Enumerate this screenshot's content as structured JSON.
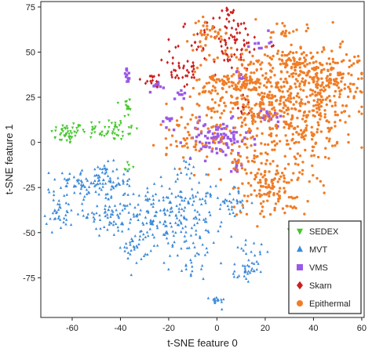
{
  "chart_data": {
    "type": "scatter",
    "xlabel": "t-SNE feature 0",
    "ylabel": "t-SNE feature 1",
    "xlim": [
      -73,
      61
    ],
    "ylim": [
      -97,
      78
    ],
    "x_ticks": [
      -60,
      -40,
      -20,
      0,
      20,
      40,
      60
    ],
    "y_ticks": [
      75,
      50,
      25,
      0,
      -25,
      -50,
      -75
    ],
    "grid": false,
    "legend_position": "bottom-right",
    "series": [
      {
        "name": "SEDEX",
        "color": "#44c62b",
        "marker": "triangle-down",
        "clusters": [
          {
            "cx": -62,
            "cy": 5,
            "sx": 3.5,
            "sy": 3,
            "n": 45
          },
          {
            "cx": -44,
            "cy": 7,
            "sx": 6,
            "sy": 3,
            "n": 50
          },
          {
            "cx": -37,
            "cy": 20,
            "sx": 1,
            "sy": 4,
            "n": 15
          },
          {
            "cx": -37,
            "cy": -14,
            "sx": 1,
            "sy": 2,
            "n": 6
          },
          {
            "cx": 34,
            "cy": -48,
            "sx": 3,
            "sy": 1.5,
            "n": 12
          }
        ]
      },
      {
        "name": "MVT",
        "color": "#3d8ad8",
        "marker": "triangle-up",
        "clusters": [
          {
            "cx": -50,
            "cy": -22,
            "sx": 8,
            "sy": 5,
            "n": 120
          },
          {
            "cx": -45,
            "cy": -40,
            "sx": 5,
            "sy": 5,
            "n": 60
          },
          {
            "cx": -65,
            "cy": -38,
            "sx": 3,
            "sy": 6,
            "n": 35
          },
          {
            "cx": -22,
            "cy": -42,
            "sx": 10,
            "sy": 9,
            "n": 180
          },
          {
            "cx": -8,
            "cy": -38,
            "sx": 5,
            "sy": 10,
            "n": 50
          },
          {
            "cx": 7,
            "cy": -33,
            "sx": 2.5,
            "sy": 4,
            "n": 30
          },
          {
            "cx": -34,
            "cy": -58,
            "sx": 3,
            "sy": 4,
            "n": 25
          },
          {
            "cx": -10,
            "cy": -66,
            "sx": 4,
            "sy": 5,
            "n": 25
          },
          {
            "cx": 12,
            "cy": -72,
            "sx": 2.5,
            "sy": 3,
            "n": 30
          },
          {
            "cx": 0,
            "cy": -88,
            "sx": 1.5,
            "sy": 1.5,
            "n": 15
          },
          {
            "cx": 14,
            "cy": -60,
            "sx": 5,
            "sy": 4,
            "n": 15
          },
          {
            "cx": -14,
            "cy": -15,
            "sx": 4,
            "sy": 3,
            "n": 12
          }
        ]
      },
      {
        "name": "VMS",
        "color": "#9b59e6",
        "marker": "square",
        "clusters": [
          {
            "cx": -37,
            "cy": 37,
            "sx": 0.8,
            "sy": 2,
            "n": 12
          },
          {
            "cx": -25,
            "cy": 32,
            "sx": 1.5,
            "sy": 2,
            "n": 10
          },
          {
            "cx": -15,
            "cy": 27,
            "sx": 1.2,
            "sy": 1.5,
            "n": 8
          },
          {
            "cx": -20,
            "cy": 13,
            "sx": 1,
            "sy": 3,
            "n": 8
          },
          {
            "cx": 0,
            "cy": 2,
            "sx": 7,
            "sy": 5,
            "n": 90
          },
          {
            "cx": 10,
            "cy": 37,
            "sx": 1,
            "sy": 2,
            "n": 10
          },
          {
            "cx": 8,
            "cy": -14,
            "sx": 1,
            "sy": 2,
            "n": 10
          },
          {
            "cx": 22,
            "cy": 15,
            "sx": 2.5,
            "sy": 3,
            "n": 20
          },
          {
            "cx": 18,
            "cy": 55,
            "sx": 2,
            "sy": 2,
            "n": 10
          }
        ]
      },
      {
        "name": "Skarn",
        "color": "#cc1f1f",
        "marker": "diamond",
        "clusters": [
          {
            "cx": 5,
            "cy": 55,
            "sx": 8,
            "sy": 8,
            "n": 90
          },
          {
            "cx": -15,
            "cy": 40,
            "sx": 4,
            "sy": 5,
            "n": 35
          },
          {
            "cx": -28,
            "cy": 34,
            "sx": 3,
            "sy": 2,
            "n": 12
          },
          {
            "cx": 5,
            "cy": 72,
            "sx": 2,
            "sy": 1.2,
            "n": 10
          },
          {
            "cx": 12,
            "cy": 20,
            "sx": 2,
            "sy": 3,
            "n": 10
          }
        ]
      },
      {
        "name": "Epithermal",
        "color": "#f07d27",
        "marker": "circle",
        "clusters": [
          {
            "cx": 35,
            "cy": 20,
            "sx": 12,
            "sy": 18,
            "n": 380
          },
          {
            "cx": 47,
            "cy": 36,
            "sx": 7,
            "sy": 7,
            "n": 120
          },
          {
            "cx": 15,
            "cy": 25,
            "sx": 12,
            "sy": 15,
            "n": 250
          },
          {
            "cx": 32,
            "cy": 45,
            "sx": 5,
            "sy": 3,
            "n": 45
          },
          {
            "cx": 8,
            "cy": 32,
            "sx": 8,
            "sy": 5,
            "n": 90
          },
          {
            "cx": -10,
            "cy": 5,
            "sx": 7,
            "sy": 8,
            "n": 60
          },
          {
            "cx": 22,
            "cy": -28,
            "sx": 8,
            "sy": 7,
            "n": 100
          },
          {
            "cx": -4,
            "cy": 60,
            "sx": 4,
            "sy": 4,
            "n": 35
          },
          {
            "cx": 15,
            "cy": -12,
            "sx": 5,
            "sy": 5,
            "n": 40
          },
          {
            "cx": 28,
            "cy": 62,
            "sx": 2,
            "sy": 2.5,
            "n": 12
          }
        ]
      }
    ]
  }
}
